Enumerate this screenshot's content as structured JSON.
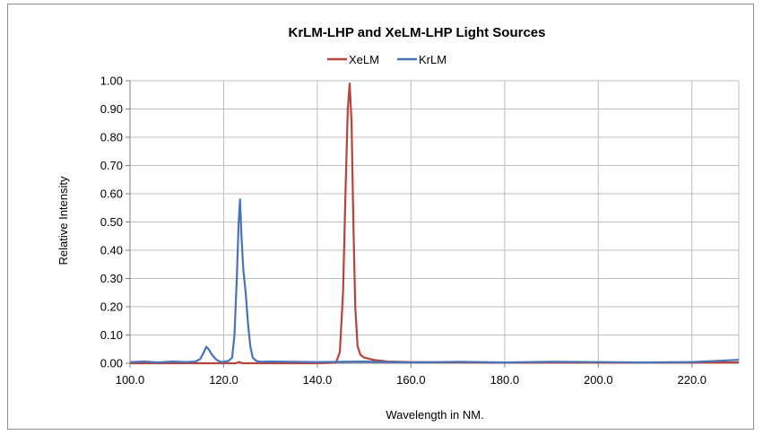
{
  "chart_data": {
    "type": "line",
    "title": "KrLM-LHP and XeLM-LHP Light Sources",
    "xlabel": "Wavelength in NM.",
    "ylabel": "Relative Intensity",
    "xlim": [
      100,
      230
    ],
    "ylim": [
      0,
      1
    ],
    "grid": true,
    "legend_position": "top",
    "x_ticks": [
      "100.0",
      "120.0",
      "140.0",
      "160.0",
      "180.0",
      "200.0",
      "220.0"
    ],
    "y_ticks": [
      "0.00",
      "0.10",
      "0.20",
      "0.30",
      "0.40",
      "0.50",
      "0.60",
      "0.70",
      "0.80",
      "0.90",
      "1.00"
    ],
    "series": [
      {
        "name": "XeLM",
        "color": "#b5443f",
        "x": [
          100,
          110,
          120,
          122.5,
          123.3,
          124,
          130,
          140,
          144,
          144.8,
          145.5,
          146,
          146.5,
          146.9,
          147.3,
          147.7,
          148.1,
          148.6,
          149.2,
          150,
          152,
          155,
          160,
          180,
          200,
          230
        ],
        "y": [
          0.0,
          0.0,
          0.0,
          0.0,
          0.004,
          0.0,
          0.0,
          0.0,
          0.002,
          0.04,
          0.25,
          0.6,
          0.9,
          0.99,
          0.85,
          0.5,
          0.2,
          0.06,
          0.03,
          0.02,
          0.012,
          0.006,
          0.004,
          0.002,
          0.002,
          0.003
        ]
      },
      {
        "name": "KrLM",
        "color": "#4a72b8",
        "x": [
          100,
          103,
          106,
          109,
          112,
          114,
          115,
          115.8,
          116.3,
          116.8,
          117.5,
          118.5,
          119.5,
          121,
          121.8,
          122.3,
          122.8,
          123.2,
          123.5,
          123.8,
          124.2,
          124.7,
          125.2,
          125.7,
          126.2,
          127,
          128,
          130,
          140,
          150,
          160,
          170,
          180,
          190,
          200,
          210,
          220,
          230
        ],
        "y": [
          0.004,
          0.006,
          0.003,
          0.006,
          0.004,
          0.006,
          0.015,
          0.04,
          0.058,
          0.05,
          0.03,
          0.012,
          0.004,
          0.008,
          0.02,
          0.1,
          0.3,
          0.5,
          0.58,
          0.45,
          0.33,
          0.25,
          0.14,
          0.06,
          0.02,
          0.008,
          0.005,
          0.006,
          0.004,
          0.006,
          0.003,
          0.005,
          0.003,
          0.005,
          0.004,
          0.003,
          0.004,
          0.012
        ]
      }
    ]
  }
}
